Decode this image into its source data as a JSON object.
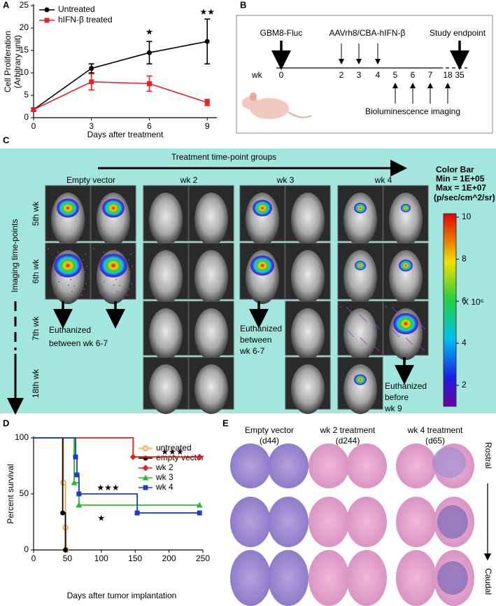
{
  "panel_labels": [
    "A",
    "B",
    "C",
    "D",
    "E"
  ],
  "chart_data": [
    {
      "type": "line",
      "xlabel": "Days after treatment",
      "ylabel": [
        "Cell Proliferation",
        "(Arbitrary unit)"
      ],
      "x": [
        0,
        3,
        6,
        9
      ],
      "xlim": [
        0,
        9.5
      ],
      "xticks": [
        0,
        3,
        6,
        9
      ],
      "ylim": [
        0,
        25
      ],
      "yticks": [
        0,
        5,
        10,
        15,
        20,
        25
      ],
      "legend": "upper left",
      "series": [
        {
          "name": "Untreated",
          "color": "#000000",
          "marker": "circle",
          "values": [
            1.8,
            11,
            14.5,
            17
          ],
          "errors": [
            0.3,
            1,
            2.5,
            5
          ]
        },
        {
          "name": "hIFN-β treated",
          "color": "#e8202a",
          "marker": "square",
          "values": [
            1.8,
            8,
            7.6,
            3.4
          ],
          "errors": [
            0.3,
            1.8,
            1.7,
            0.7
          ]
        }
      ],
      "annotations": [
        {
          "text": "★",
          "x": 6,
          "y": 19
        },
        {
          "text": "★★",
          "x": 9,
          "y": 23.5
        }
      ]
    },
    {
      "type": "step",
      "xlabel": "Days after tumor implantation",
      "ylabel": "Percent survival",
      "xlim": [
        0,
        250
      ],
      "xticks": [
        0,
        50,
        100,
        150,
        200,
        250
      ],
      "ylim": [
        0,
        100
      ],
      "yticks": [
        0,
        50,
        100
      ],
      "legend": "upper right",
      "series": [
        {
          "name": "untreated",
          "color": "#f5a040",
          "marker": "open-circle",
          "x": [
            0,
            44,
            47,
            48
          ],
          "values": [
            100,
            60,
            20,
            0
          ]
        },
        {
          "name": "empty vector",
          "color": "#000000",
          "marker": "circle",
          "x": [
            0,
            43,
            47
          ],
          "values": [
            100,
            33,
            0
          ]
        },
        {
          "name": "wk 2",
          "color": "#e3201b",
          "marker": "diamond",
          "x": [
            0,
            147,
            245
          ],
          "values": [
            100,
            83,
            83
          ]
        },
        {
          "name": "wk 3",
          "color": "#2db82d",
          "marker": "triangle",
          "x": [
            0,
            60,
            67,
            245
          ],
          "values": [
            100,
            60,
            40,
            40
          ]
        },
        {
          "name": "wk 4",
          "color": "#1a3fc4",
          "marker": "square",
          "x": [
            0,
            62,
            64,
            67,
            153,
            245
          ],
          "values": [
            100,
            83,
            67,
            50,
            33,
            33
          ]
        }
      ],
      "annotations": [
        {
          "text": "★★★",
          "x": 205,
          "y": 87
        },
        {
          "text": "★★★",
          "x": 110,
          "y": 55
        },
        {
          "text": "★",
          "x": 100,
          "y": 28
        }
      ]
    }
  ],
  "panel_b": {
    "cell_line": "GBM8-Fluc",
    "vector": "AAVrh8/CBA-hIFN-β",
    "endpoint": "Study endpoint",
    "axis_label": "wk",
    "weeks": [
      0,
      2,
      3,
      4,
      5,
      6,
      7,
      18,
      35
    ],
    "imaging": "Bioluminescence imaging"
  },
  "panel_c": {
    "title": "Treatment time-point groups",
    "groups": [
      "Empty vector",
      "wk 2",
      "wk 3",
      "wk 4"
    ],
    "row_axis": "Imaging time-points",
    "rows": [
      "5th wk",
      "6th wk",
      "7th wk",
      "18th wk"
    ],
    "notes": [
      [
        "Euthanized",
        "between wk 6-7"
      ],
      [
        "Euthanized",
        "between",
        "wk 6-7"
      ],
      [
        "Euthanized",
        "before",
        "wk 9"
      ]
    ],
    "colorbar": {
      "title": "Color Bar",
      "min": "Min =  1E+05",
      "max": "Max = 1E+07",
      "unit": "(p/sec/cm^2/sr)",
      "ticks": [
        2,
        4,
        6,
        8,
        10
      ],
      "multiplier": "X 10⁶"
    }
  },
  "panel_e": {
    "groups": [
      [
        "Empty vector",
        "(d44)"
      ],
      [
        "wk 2 treatment",
        "(d244)"
      ],
      [
        "wk 4 treatment",
        "(d65)"
      ]
    ],
    "rostral": "Rostral",
    "caudal": "Caudal"
  }
}
